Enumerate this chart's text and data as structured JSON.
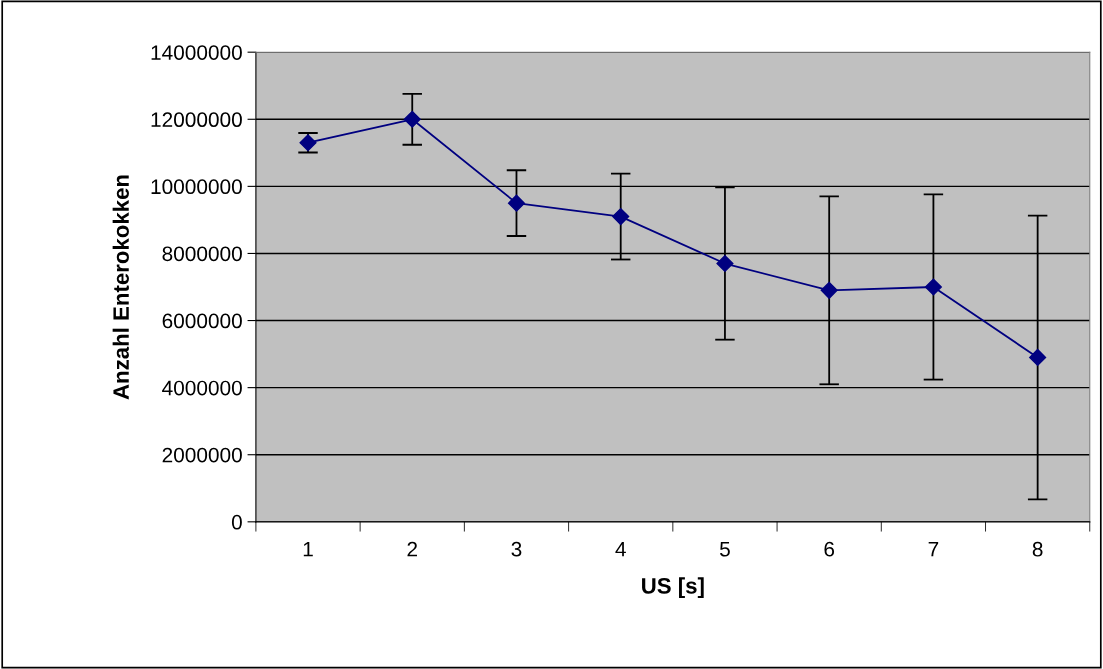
{
  "chart_data": {
    "type": "line",
    "xlabel": "US [s]",
    "ylabel": "Anzahl Enterokokken",
    "categories": [
      "1",
      "2",
      "3",
      "4",
      "5",
      "6",
      "7",
      "8"
    ],
    "series": [
      {
        "color": "#000080",
        "values": [
          11300000,
          12000000,
          9500000,
          9100000,
          7700000,
          6900000,
          7000000,
          4900000
        ],
        "errors": [
          290000,
          760000,
          980000,
          1280000,
          2270000,
          2800000,
          2760000,
          4230000
        ]
      }
    ],
    "ylim": [
      0,
      14000000
    ],
    "yticks": [
      0,
      2000000,
      4000000,
      6000000,
      8000000,
      10000000,
      12000000,
      14000000
    ],
    "grid": "y",
    "marker": "diamond",
    "line_style": "solid",
    "legend": false
  }
}
